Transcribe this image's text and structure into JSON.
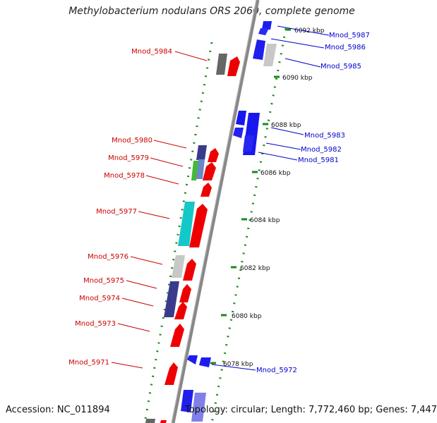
{
  "title": "Methylobacterium nodulans ORS 2060, complete genome",
  "footer": {
    "accession": "Accession: NC_011894",
    "stats": "Topology: circular; Length: 7,772,460 bp; Genes: 7,447"
  },
  "colors": {
    "forward": "#ee0000",
    "reverse": "#0000ee",
    "axis": "#888888",
    "tick": "#1a8a1a",
    "label_forward": "#cc0000",
    "label_reverse": "#0000cc",
    "gray": "#666666",
    "light_gray": "#c8c8c8",
    "navy": "#3a3a8c",
    "cyan": "#15c8c8",
    "green": "#44bb33"
  },
  "scale_labels": [
    "6092 kbp",
    "6090 kbp",
    "6088 kbp",
    "6086 kbp",
    "6084 kbp",
    "6082 kbp",
    "6080 kbp",
    "6078 kbp"
  ],
  "forward_labels": [
    "Mnod_5984",
    "Mnod_5980",
    "Mnod_5979",
    "Mnod_5978",
    "Mnod_5977",
    "Mnod_5976",
    "Mnod_5975",
    "Mnod_5974",
    "Mnod_5973",
    "Mnod_5971"
  ],
  "reverse_labels": [
    "Mnod_5987",
    "Mnod_5986",
    "Mnod_5985",
    "Mnod_5983",
    "Mnod_5982",
    "Mnod_5981",
    "Mnod_5972"
  ]
}
